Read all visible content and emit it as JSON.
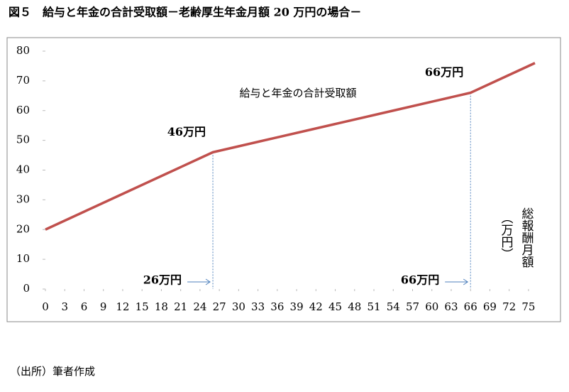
{
  "chart_data": {
    "type": "line",
    "title": "図５　給与と年金の合計受取額－老齢厚生年金月額 20 万円の場合－",
    "x": [
      0,
      6,
      12,
      18,
      24,
      26,
      30,
      36,
      42,
      48,
      54,
      60,
      66,
      70,
      76
    ],
    "series": [
      {
        "name": "給与と年金の合計受取額",
        "color": "#c0504d",
        "values": [
          20,
          26,
          32,
          38,
          44,
          46,
          48,
          51,
          54,
          57,
          60,
          63,
          66,
          70,
          76
        ]
      }
    ],
    "xlim": [
      0,
      76
    ],
    "xticks": [
      0,
      3,
      6,
      9,
      12,
      15,
      18,
      21,
      24,
      27,
      30,
      33,
      36,
      39,
      42,
      45,
      48,
      51,
      54,
      57,
      60,
      63,
      66,
      69,
      72,
      75
    ],
    "ylim": [
      0,
      80
    ],
    "yticks": [
      0,
      10,
      20,
      30,
      40,
      50,
      60,
      70,
      80
    ],
    "x_axis_label": "総報酬月額",
    "x_axis_unit": "（万円）",
    "reference_lines": [
      {
        "x": 26,
        "y": 46,
        "label": "46万円",
        "x_label": "26万円"
      },
      {
        "x": 66,
        "y": 66,
        "label": "66万円",
        "x_label": "66万円"
      }
    ],
    "source": "（出所）筆者作成"
  }
}
